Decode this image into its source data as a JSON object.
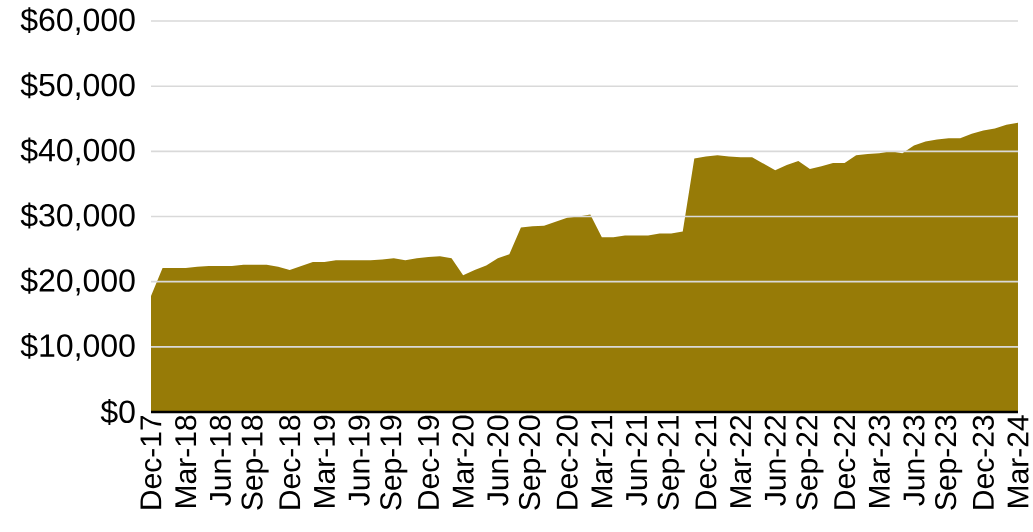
{
  "chart_data": {
    "type": "area",
    "categories": [
      "Dec-17",
      null,
      null,
      "Mar-18",
      null,
      null,
      "Jun-18",
      null,
      null,
      "Sep-18",
      null,
      null,
      "Dec-18",
      null,
      null,
      "Mar-19",
      null,
      null,
      "Jun-19",
      null,
      null,
      "Sep-19",
      null,
      null,
      "Dec-19",
      null,
      null,
      "Mar-20",
      null,
      null,
      "Jun-20",
      null,
      null,
      "Sep-20",
      null,
      null,
      "Dec-20",
      null,
      null,
      "Mar-21",
      null,
      null,
      "Jun-21",
      null,
      null,
      "Sep-21",
      null,
      null,
      "Dec-21",
      null,
      null,
      "Mar-22",
      null,
      null,
      "Jun-22",
      null,
      null,
      "Sep-22",
      null,
      null,
      "Dec-22",
      null,
      null,
      "Mar-23",
      null,
      null,
      "Jun-23",
      null,
      null,
      "Sep-23",
      null,
      null,
      "Dec-23",
      null,
      null,
      "Mar-24"
    ],
    "values": [
      17800,
      22100,
      22100,
      22100,
      22300,
      22400,
      22400,
      22400,
      22600,
      22600,
      22600,
      22300,
      21800,
      22400,
      23000,
      23000,
      23300,
      23300,
      23300,
      23300,
      23400,
      23600,
      23300,
      23600,
      23800,
      23900,
      23600,
      21000,
      21800,
      22500,
      23600,
      24200,
      28300,
      28500,
      28600,
      29200,
      29800,
      30000,
      30300,
      26800,
      26800,
      27100,
      27100,
      27100,
      27400,
      27400,
      27700,
      38900,
      39200,
      39400,
      39200,
      39100,
      39100,
      38100,
      37100,
      37900,
      38500,
      37300,
      37700,
      38200,
      38200,
      39400,
      39600,
      39700,
      40000,
      39700,
      40900,
      41500,
      41800,
      42000,
      42000,
      42700,
      43200,
      43500,
      44100,
      44400
    ],
    "color": "#977b07",
    "ylim": [
      0,
      60000
    ],
    "yticks": [
      {
        "value": 0,
        "label": "$0"
      },
      {
        "value": 10000,
        "label": "$10,000"
      },
      {
        "value": 20000,
        "label": "$20,000"
      },
      {
        "value": 30000,
        "label": "$30,000"
      },
      {
        "value": 40000,
        "label": "$40,000"
      },
      {
        "value": 50000,
        "label": "$50,000"
      },
      {
        "value": 60000,
        "label": "$60,000"
      }
    ],
    "grid": "y"
  }
}
